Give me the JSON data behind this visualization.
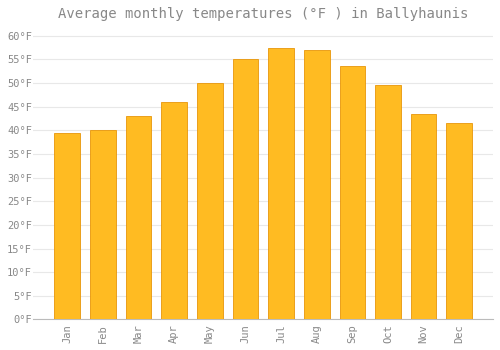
{
  "title": "Average monthly temperatures (°F ) in Ballyhaunis",
  "months": [
    "Jan",
    "Feb",
    "Mar",
    "Apr",
    "May",
    "Jun",
    "Jul",
    "Aug",
    "Sep",
    "Oct",
    "Nov",
    "Dec"
  ],
  "values": [
    39.5,
    40.1,
    43.0,
    46.0,
    50.0,
    55.0,
    57.5,
    57.0,
    53.5,
    49.5,
    43.5,
    41.5
  ],
  "bar_color": "#FFBB22",
  "bar_edge_color": "#E8960A",
  "background_color": "#FFFFFF",
  "grid_color": "#E8E8E8",
  "text_color": "#888888",
  "ylim": [
    0,
    62
  ],
  "yticks": [
    0,
    5,
    10,
    15,
    20,
    25,
    30,
    35,
    40,
    45,
    50,
    55,
    60
  ],
  "title_fontsize": 10,
  "tick_fontsize": 7.5
}
